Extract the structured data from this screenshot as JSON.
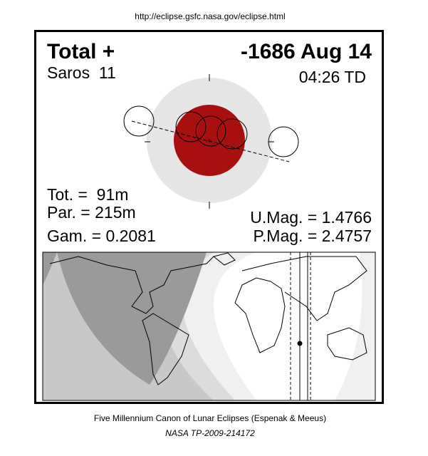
{
  "header": {
    "url": "http://eclipse.gsfc.nasa.gov/eclipse.html"
  },
  "panel": {
    "eclipse_type": "Total +",
    "date": "-1686 Aug 14",
    "saros": "Saros  11",
    "time": "04:26 TD",
    "totality": "Tot. =  91m",
    "partial": "Par. = 215m",
    "gamma": "Gam. = 0.2081",
    "umbral_magnitude": "U.Mag. = 1.4766",
    "penumbral_magnitude": "P.Mag. = 2.4757"
  },
  "footer": {
    "canon": "Five Millennium Canon of Lunar Eclipses (Espenak & Meeus)",
    "reference": "NASA TP-2009-214172"
  }
}
